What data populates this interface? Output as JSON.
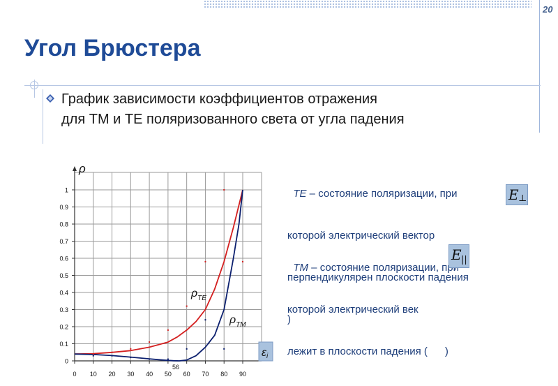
{
  "slide_number": "20",
  "title": "Угол Брюстера",
  "main_bullet": {
    "line1": "График зависимости коэффициентов отражения",
    "line2": "для ТМ и ТЕ поляризованного света от угла падения"
  },
  "notes": {
    "te": {
      "abbr": "TE",
      "line1": " – состояние поляризации, при",
      "line2": "которой электрический вектор",
      "line3": "перпендикулярен плоскости падения",
      "line4": ")"
    },
    "tm": {
      "abbr": "TM",
      "line1": " – состояние поляризации, при",
      "line2": "которой электрический век",
      "line3": "лежит в плоскости падения (      )"
    }
  },
  "formulas": {
    "e_perp": "E",
    "e_perp_sub": "⊥",
    "e_par": "E",
    "e_par_sub": "||"
  },
  "chart_data": {
    "type": "line",
    "ylabel": "ρ",
    "xlabel": "εi",
    "x_ticks": [
      "0",
      "10",
      "20",
      "30",
      "40",
      "50",
      "60",
      "70",
      "80",
      "90"
    ],
    "y_ticks": [
      "0",
      "0.1",
      "0.2",
      "0.3",
      "0.4",
      "0.5",
      "0.6",
      "0.7",
      "0.8",
      "0.9",
      "1"
    ],
    "xlim": [
      0,
      90
    ],
    "ylim": [
      0,
      1
    ],
    "grid": true,
    "annotation": "56",
    "series": [
      {
        "name": "ρTE",
        "color": "#d42020",
        "x": [
          0,
          10,
          20,
          30,
          40,
          50,
          55,
          60,
          65,
          70,
          75,
          80,
          85,
          90
        ],
        "y": [
          0.04,
          0.042,
          0.05,
          0.06,
          0.08,
          0.11,
          0.14,
          0.18,
          0.23,
          0.3,
          0.42,
          0.58,
          0.78,
          1.0
        ]
      },
      {
        "name": "ρTM",
        "color": "#0b1f6e",
        "x": [
          0,
          10,
          20,
          30,
          40,
          45,
          50,
          53,
          56,
          60,
          65,
          70,
          75,
          80,
          85,
          88,
          90
        ],
        "y": [
          0.04,
          0.037,
          0.031,
          0.022,
          0.012,
          0.007,
          0.003,
          0.001,
          0.0,
          0.005,
          0.03,
          0.08,
          0.15,
          0.3,
          0.6,
          0.8,
          1.0
        ]
      }
    ],
    "scatter_points": [
      {
        "color": "#d42020",
        "x": [
          10,
          20,
          30,
          40,
          50,
          60,
          70,
          80,
          90
        ],
        "y": [
          0.04,
          0.05,
          0.07,
          0.11,
          0.18,
          0.32,
          0.58,
          1.0,
          0.58
        ]
      },
      {
        "color": "#0b1f6e",
        "x": [
          10,
          20,
          30,
          40,
          50,
          60,
          70,
          80
        ],
        "y": [
          0.03,
          0.03,
          0.02,
          0.01,
          0.01,
          0.07,
          0.24,
          0.07
        ]
      }
    ]
  }
}
